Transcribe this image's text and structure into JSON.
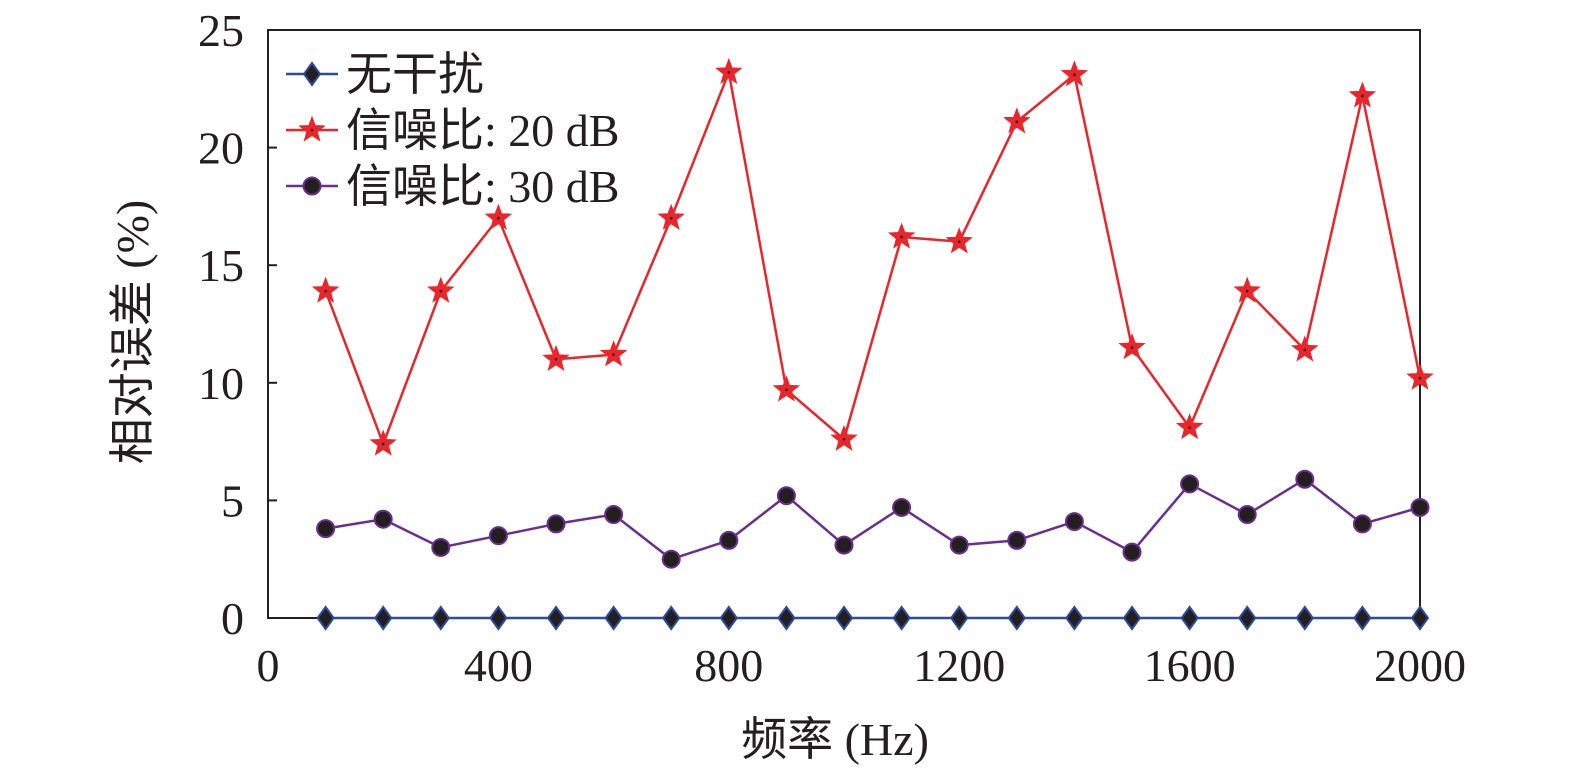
{
  "chart_data": {
    "type": "line",
    "title": "",
    "xlabel": "频率 (Hz)",
    "ylabel": "相对误差 (%)",
    "xlim": [
      0,
      2000
    ],
    "ylim": [
      0,
      25
    ],
    "xticks": [
      0,
      400,
      800,
      1200,
      1600,
      2000
    ],
    "yticks": [
      0,
      5,
      10,
      15,
      20,
      25
    ],
    "xtick_labels": [
      "0",
      "400",
      "800",
      "1200",
      "1600",
      "2000"
    ],
    "ytick_labels": [
      "0",
      "5",
      "10",
      "15",
      "20",
      "25"
    ],
    "grid": false,
    "legend_position": "top-left",
    "x": [
      100,
      200,
      300,
      400,
      500,
      600,
      700,
      800,
      900,
      1000,
      1100,
      1200,
      1300,
      1400,
      1500,
      1600,
      1700,
      1800,
      1900,
      2000
    ],
    "series": [
      {
        "name": "无干扰",
        "color": "#2e4a9e",
        "marker": "diamond",
        "values": [
          0,
          0,
          0,
          0,
          0,
          0,
          0,
          0,
          0,
          0,
          0,
          0,
          0,
          0,
          0,
          0,
          0,
          0,
          0,
          0
        ]
      },
      {
        "name": "信噪比: 20 dB",
        "color": "#e8262c",
        "marker": "star",
        "values": [
          13.9,
          7.4,
          13.9,
          17.0,
          11.0,
          11.2,
          17.0,
          23.2,
          9.7,
          7.6,
          16.2,
          16.0,
          21.1,
          23.1,
          11.5,
          8.1,
          13.9,
          11.4,
          22.2,
          10.2
        ]
      },
      {
        "name": "信噪比: 30 dB",
        "color": "#6a2f8e",
        "marker": "circle",
        "values": [
          3.8,
          4.2,
          3.0,
          3.5,
          4.0,
          4.4,
          2.5,
          3.3,
          5.2,
          3.1,
          4.7,
          3.1,
          3.3,
          4.1,
          2.8,
          5.7,
          4.4,
          5.9,
          4.0,
          4.7
        ]
      }
    ]
  }
}
